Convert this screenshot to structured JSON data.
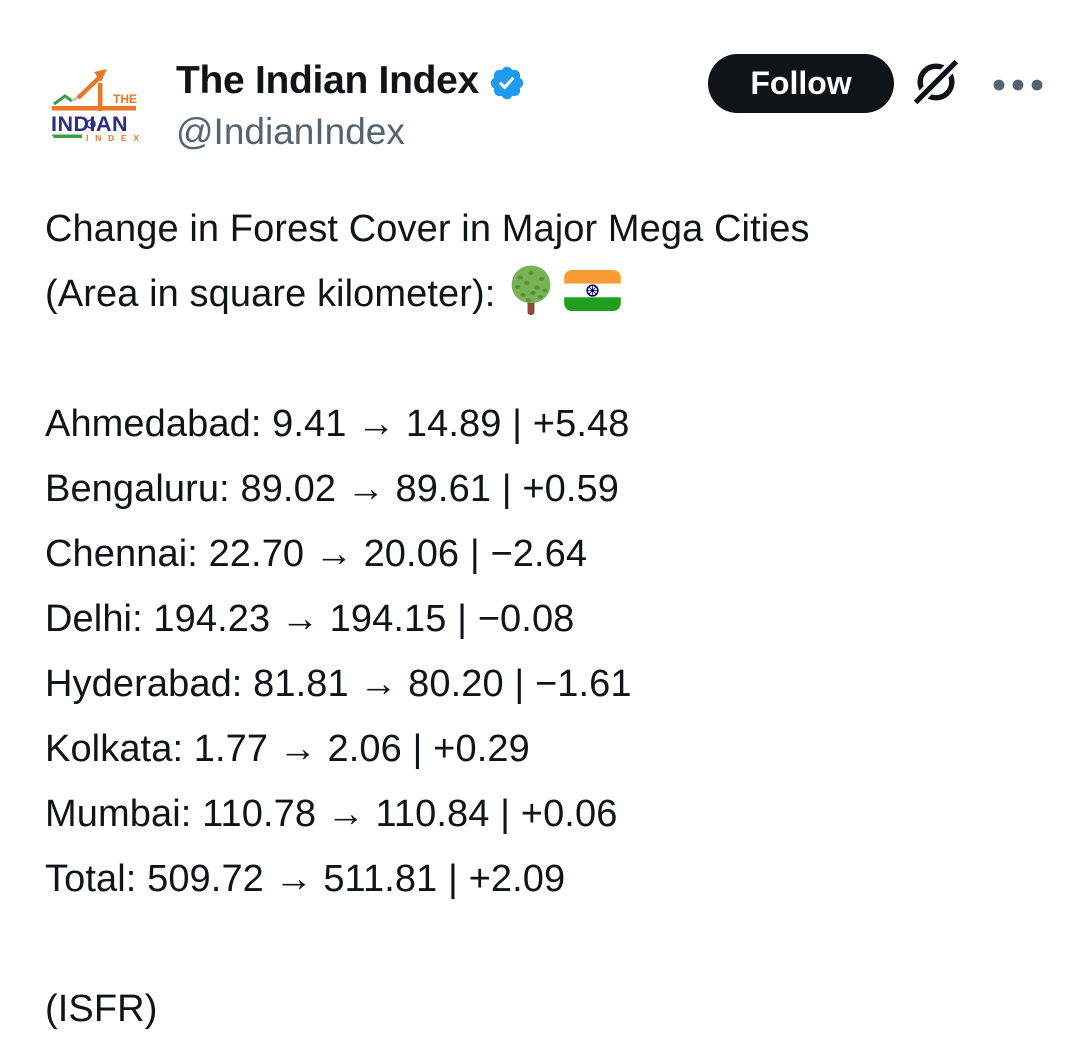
{
  "header": {
    "display_name": "The Indian Index",
    "handle": "@IndianIndex",
    "follow_label": "Follow",
    "avatar_logo": {
      "word_the": "THE",
      "word_indian": "INDIAN",
      "word_index": "I N D E X"
    }
  },
  "tweet": {
    "title_line1": "Change in Forest Cover in Major Mega Cities",
    "title_line2": "(Area in square kilometer):",
    "emojis": [
      "deciduous-tree",
      "flag-india"
    ],
    "glyphs": {
      "colon": ": ",
      "arrow": " → ",
      "pipe": " | "
    },
    "rows": [
      {
        "label": "Ahmedabad",
        "from": "9.41",
        "to": "14.89",
        "change": "+5.48"
      },
      {
        "label": "Bengaluru",
        "from": "89.02",
        "to": "89.61",
        "change": "+0.59"
      },
      {
        "label": "Chennai",
        "from": "22.70",
        "to": "20.06",
        "change": "−2.64"
      },
      {
        "label": "Delhi",
        "from": "194.23",
        "to": "194.15",
        "change": "−0.08"
      },
      {
        "label": "Hyderabad",
        "from": "81.81",
        "to": "80.20",
        "change": "−1.61"
      },
      {
        "label": "Kolkata",
        "from": "1.77",
        "to": "2.06",
        "change": "+0.29"
      },
      {
        "label": "Mumbai",
        "from": "110.78",
        "to": "110.84",
        "change": "+0.06"
      },
      {
        "label": "Total",
        "from": "509.72",
        "to": "511.81",
        "change": "+2.09"
      }
    ],
    "source": "(ISFR)"
  },
  "colors": {
    "text": "#0f1419",
    "secondary_gray": "#536471",
    "verified_blue": "#1d9bf0",
    "follow_button_bg": "#0f1419",
    "logo_orange": "#e8772a",
    "logo_navy": "#2d2e83",
    "logo_green": "#3d9b4f",
    "flag_saffron": "#f79b33",
    "flag_green": "#1ea01e",
    "chakra_navy": "#000080",
    "tree_green": "#77b255",
    "tree_spot_green": "#5c913b",
    "trunk_brown": "#8a4b38"
  }
}
